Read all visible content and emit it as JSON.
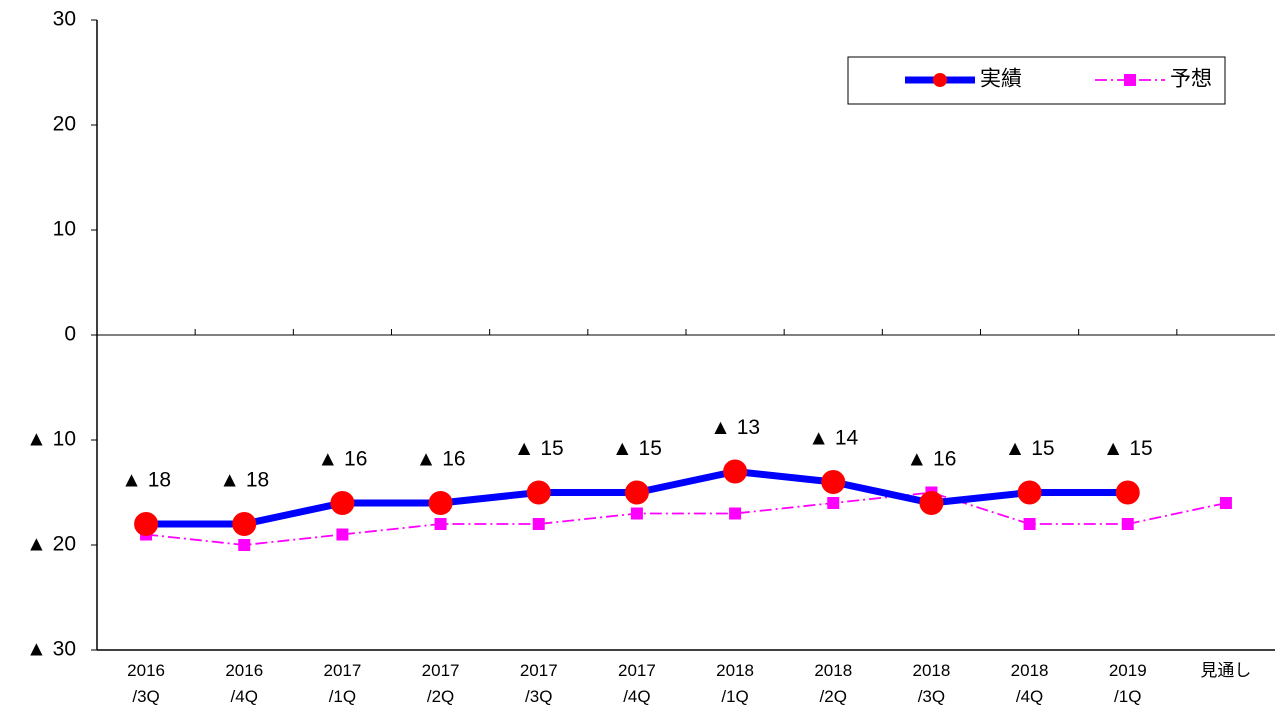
{
  "chart_data": {
    "type": "line",
    "categories": [
      "2016\n/3Q",
      "2016\n/4Q",
      "2017\n/1Q",
      "2017\n/2Q",
      "2017\n/3Q",
      "2017\n/4Q",
      "2018\n/1Q",
      "2018\n/2Q",
      "2018\n/3Q",
      "2018\n/4Q",
      "2019\n/1Q",
      "見通し"
    ],
    "series": [
      {
        "name": "実績",
        "color": "#0000ff",
        "marker_color": "#ff0000",
        "marker": "circle",
        "line_style": "solid",
        "values": [
          -18,
          -18,
          -16,
          -16,
          -15,
          -15,
          -13,
          -14,
          -16,
          -15,
          -15,
          null
        ],
        "value_labels": [
          "▲ 18",
          "▲ 18",
          "▲ 16",
          "▲ 16",
          "▲ 15",
          "▲ 15",
          "▲ 13",
          "▲ 14",
          "▲ 16",
          "▲ 15",
          "▲ 15",
          null
        ]
      },
      {
        "name": "予想",
        "color": "#ff00ff",
        "marker_color": "#ff00ff",
        "marker": "square",
        "line_style": "dashdot",
        "values": [
          -19,
          -20,
          -19,
          -18,
          -18,
          -17,
          -17,
          -16,
          -15,
          -18,
          -18,
          -16
        ]
      }
    ],
    "ylim": [
      -30,
      30
    ],
    "yticks": [
      {
        "value": -30,
        "label": "▲ 30"
      },
      {
        "value": -20,
        "label": "▲ 20"
      },
      {
        "value": -10,
        "label": "▲ 10"
      },
      0,
      10,
      20,
      30
    ],
    "grid": false,
    "legend": "top-right"
  }
}
